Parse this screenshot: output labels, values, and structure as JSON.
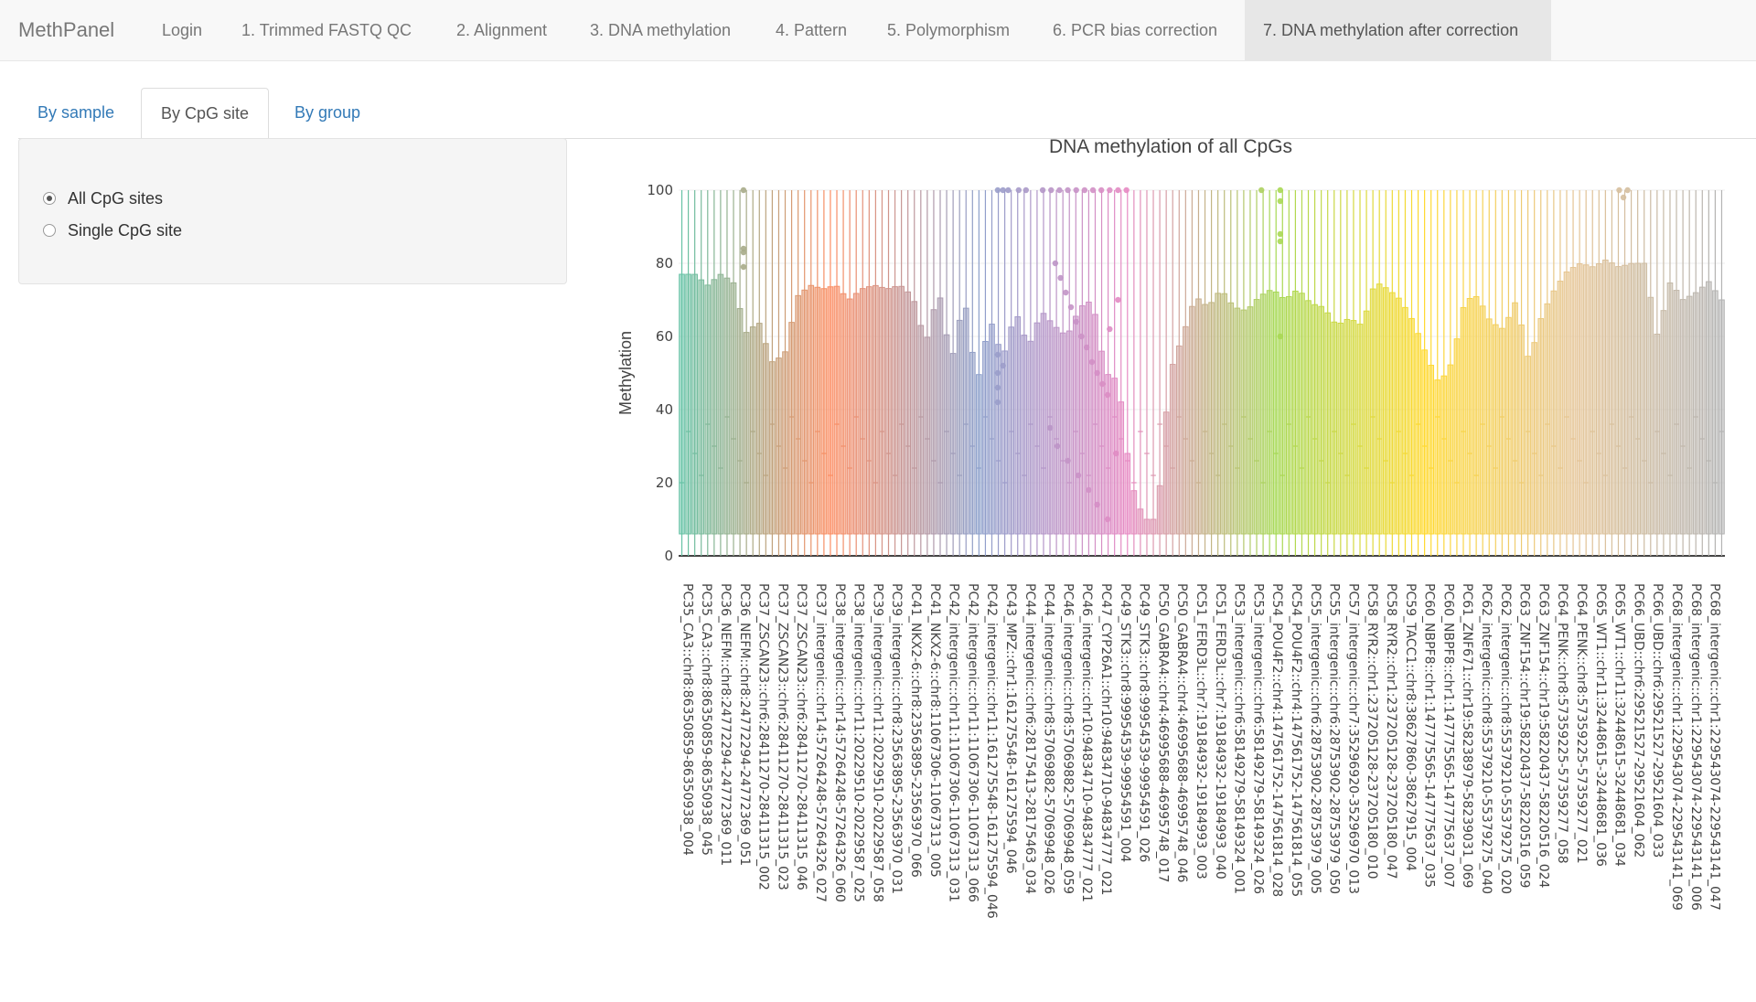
{
  "app": {
    "brand": "MethPanel"
  },
  "nav": {
    "items": [
      {
        "label": "Login",
        "active": false
      },
      {
        "label": "1. Trimmed FASTQ QC",
        "active": false
      },
      {
        "label": "2. Alignment",
        "active": false
      },
      {
        "label": "3. DNA methylation",
        "active": false
      },
      {
        "label": "4. Pattern",
        "active": false
      },
      {
        "label": "5. Polymorphism",
        "active": false
      },
      {
        "label": "6. PCR bias correction",
        "active": false
      },
      {
        "label": "7. DNA methylation after correction",
        "active": true
      }
    ]
  },
  "tabs": [
    {
      "label": "By sample",
      "active": false
    },
    {
      "label": "By CpG site",
      "active": true
    },
    {
      "label": "By group",
      "active": false
    }
  ],
  "controls": {
    "options": [
      {
        "label": "All CpG sites",
        "checked": true
      },
      {
        "label": "Single CpG site",
        "checked": false
      }
    ]
  },
  "chart_data": {
    "type": "box",
    "title": "DNA methylation of all CpGs",
    "ylabel": "Methylation",
    "ylim": [
      0,
      100
    ],
    "yticks": [
      0,
      20,
      40,
      60,
      80,
      100
    ],
    "categories": [
      "PC35_CA3::chr8:86350859-86350938_004",
      "PC35_CA3::chr8:86350859-86350938_045",
      "PC36_NEFM::chr8:24772294-24772369_011",
      "PC36_NEFM::chr8:24772294-24772369_051",
      "PC37_ZSCAN23::chr6:28411270-28411315_002",
      "PC37_ZSCAN23::chr6:28411270-28411315_023",
      "PC37_ZSCAN23::chr6:28411270-28411315_046",
      "PC37_intergenic::chr14:57264248-57264326_027",
      "PC38_intergenic::chr14:57264248-57264326_060",
      "PC38_intergenic::chr11:20229510-20229587_025",
      "PC39_intergenic::chr11:20229510-20229587_058",
      "PC39_intergenic::chr8:23563895-23563970_031",
      "PC41_NKX2-6::chr8:23563895-23563970_066",
      "PC41_NKX2-6::chr8:11067306-11067313_005",
      "PC42_intergenic::chr11:11067306-11067313_031",
      "PC42_intergenic::chr11:11067306-11067313_066",
      "PC42_intergenic::chr11:161275548-161275594_046",
      "PC43_MPZ::chr1:161275548-161275594_046",
      "PC44_intergenic::chr6:28175413-28175463_034",
      "PC44_intergenic::chr8:57069882-57069948_026",
      "PC46_intergenic::chr8:57069882-57069948_059",
      "PC46_intergenic::chr10:94834710-94834777_021",
      "PC47_CYP26A1::chr10:94834710-94834777_021",
      "PC49_STK3::chr8:99954539-99954591_004",
      "PC49_STK3::chr8:99954539-99954591_026",
      "PC50_GABRA4::chr4:46995688-46995748_017",
      "PC50_GABRA4::chr4:46995688-46995748_046",
      "PC51_FERD3L::chr7:19184932-19184993_003",
      "PC51_FERD3L::chr7:19184932-19184993_040",
      "PC53_intergenic::chr6:58149279-58149324_001",
      "PC53_intergenic::chr6:58149279-58149324_026",
      "PC54_POU4F2::chr4:147561752-147561814_028",
      "PC54_POU4F2::chr4:147561752-147561814_055",
      "PC55_intergenic::chr6:28753902-28753979_005",
      "PC55_intergenic::chr6:28753902-28753979_050",
      "PC57_intergenic::chr7:35296920-35296970_013",
      "PC58_RYR2::chr1:237205128-237205180_010",
      "PC58_RYR2::chr1:237205128-237205180_047",
      "PC59_TACC1::chr8:38627860-38627915_004",
      "PC60_NBPF8::chr1:147775565-147775637_035",
      "PC60_NBPF8::chr1:147775565-147775637_007",
      "PC61_ZNF671::chr19:58238979-58239031_069",
      "PC62_intergenic::chr8:55379210-55379275_040",
      "PC62_intergenic::chr8:55379210-55379275_020",
      "PC63_ZNF154::chr19:58220437-58220516_059",
      "PC63_ZNF154::chr19:58220437-58220516_024",
      "PC64_PENK::chr8:57359225-57359277_058",
      "PC64_PENK::chr8:57359225-57359277_021",
      "PC65_WT1::chr11:32448615-32448681_036",
      "PC65_WT1::chr11:32448615-32448681_034",
      "PC66_UBD::chr6:29521527-29521604_062",
      "PC66_UBD::chr6:29521527-29521604_033",
      "PC68_intergenic::chr1:229543074-229543141_069",
      "PC68_intergenic::chr1:229543074-229543141_006",
      "PC68_intergenic::chr1:229543074-229543141_047"
    ],
    "n_boxes": 162,
    "box_summary": {
      "whisker_low": 0,
      "whisker_high": 100,
      "median_range": [
        20,
        40
      ],
      "q3_profile": [
        77,
        77,
        74,
        77,
        75,
        61,
        64,
        53,
        55,
        71,
        74,
        73,
        74,
        70,
        73,
        74,
        73,
        74,
        71,
        58,
        73,
        53,
        71,
        47,
        65,
        54,
        67,
        57,
        67,
        63,
        60,
        68,
        70,
        50,
        48,
        20,
        10,
        10,
        50,
        60,
        71,
        68,
        73,
        68,
        67,
        71,
        73,
        70,
        73,
        69,
        68,
        63,
        65,
        63,
        75,
        73,
        70,
        64,
        55,
        47,
        53,
        70,
        71,
        64,
        62,
        70,
        53,
        66,
        73,
        78,
        80,
        79,
        81,
        79,
        80,
        80,
        60,
        75,
        70,
        72,
        75,
        70
      ]
    },
    "colors": [
      "#66c2a5",
      "#fc8d62",
      "#8da0cb",
      "#e78ac3",
      "#a6d854",
      "#ffd92f",
      "#e5c494",
      "#b3b3b3"
    ],
    "outlier_note": "outlier points near 100 and scattered points around group PC49_STK3"
  }
}
